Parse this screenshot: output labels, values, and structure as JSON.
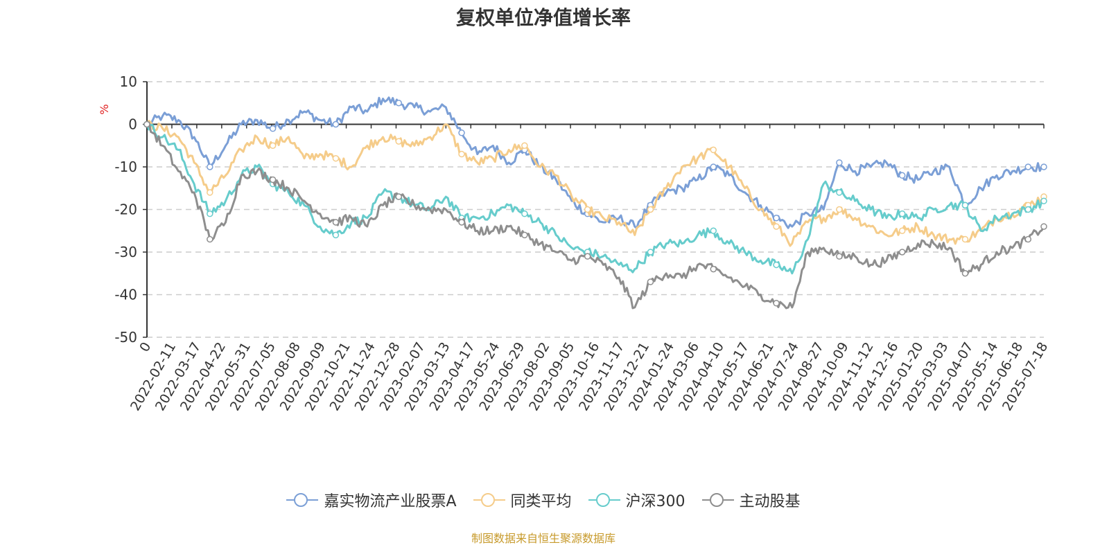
{
  "chart_data": {
    "type": "line",
    "title": "复权单位净值增长率",
    "ylabel": "%",
    "ylim": [
      -50,
      10
    ],
    "yticks": [
      10,
      0,
      -10,
      -20,
      -30,
      -40,
      -50
    ],
    "grid": true,
    "legend_position": "bottom",
    "x_tick_labels": [
      "0",
      "2022-02-11",
      "2022-03-17",
      "2022-04-22",
      "2022-05-31",
      "2022-07-05",
      "2022-08-08",
      "2022-09-09",
      "2022-10-21",
      "2022-11-24",
      "2022-12-28",
      "2023-02-07",
      "2023-03-13",
      "2023-04-17",
      "2023-05-24",
      "2023-06-29",
      "2023-08-02",
      "2023-09-05",
      "2023-10-16",
      "2023-11-17",
      "2023-12-21",
      "2024-01-24",
      "2024-03-06",
      "2024-04-10",
      "2024-05-17",
      "2024-06-21",
      "2024-07-24",
      "2024-08-27",
      "2024-10-09",
      "2024-11-12",
      "2024-12-16",
      "2025-01-20",
      "2025-03-03",
      "2025-04-07",
      "2025-05-14",
      "2025-06-18",
      "2025-07-18"
    ],
    "series": [
      {
        "name": "嘉实物流产业股票A",
        "color": "#7b9fd6",
        "values": [
          0,
          2,
          1,
          -3,
          -10,
          -5,
          0,
          1,
          -1,
          1,
          3,
          1,
          0,
          4,
          3,
          6,
          5,
          4,
          3,
          4,
          -2,
          -7,
          -5,
          -9,
          -6,
          -10,
          -13,
          -18,
          -21,
          -23,
          -22,
          -24,
          -19,
          -16,
          -15,
          -13,
          -10,
          -12,
          -16,
          -19,
          -22,
          -24,
          -21,
          -20,
          -9,
          -11,
          -10,
          -9,
          -12,
          -13,
          -11,
          -10,
          -19,
          -15,
          -12,
          -11,
          -10,
          -10
        ]
      },
      {
        "name": "同类平均",
        "color": "#f5cc8a",
        "values": [
          0,
          -1,
          -3,
          -9,
          -16,
          -12,
          -6,
          -3,
          -5,
          -3,
          -8,
          -7,
          -8,
          -10,
          -5,
          -3,
          -4,
          -5,
          -3,
          0,
          -7,
          -9,
          -8,
          -6,
          -5,
          -10,
          -12,
          -17,
          -20,
          -22,
          -23,
          -26,
          -20,
          -15,
          -10,
          -8,
          -6,
          -10,
          -15,
          -20,
          -24,
          -28,
          -23,
          -22,
          -20,
          -22,
          -24,
          -26,
          -25,
          -24,
          -26,
          -27,
          -27,
          -25,
          -22,
          -21,
          -19,
          -17
        ]
      },
      {
        "name": "沪深300",
        "color": "#66cccc",
        "values": [
          0,
          -3,
          -6,
          -14,
          -21,
          -18,
          -12,
          -10,
          -14,
          -16,
          -19,
          -24,
          -26,
          -23,
          -22,
          -16,
          -17,
          -19,
          -20,
          -17,
          -22,
          -22,
          -21,
          -19,
          -21,
          -23,
          -26,
          -29,
          -30,
          -31,
          -33,
          -34,
          -30,
          -28,
          -28,
          -26,
          -25,
          -28,
          -30,
          -32,
          -33,
          -35,
          -27,
          -14,
          -16,
          -18,
          -20,
          -22,
          -21,
          -22,
          -20,
          -19,
          -19,
          -25,
          -22,
          -21,
          -20,
          -18
        ]
      },
      {
        "name": "主动股基",
        "color": "#8e8e8e",
        "values": [
          0,
          -5,
          -11,
          -16,
          -27,
          -23,
          -12,
          -11,
          -13,
          -15,
          -18,
          -21,
          -23,
          -22,
          -24,
          -19,
          -17,
          -19,
          -20,
          -20,
          -23,
          -25,
          -25,
          -24,
          -26,
          -28,
          -30,
          -32,
          -31,
          -33,
          -36,
          -43,
          -37,
          -35,
          -36,
          -33,
          -34,
          -36,
          -38,
          -40,
          -42,
          -43,
          -30,
          -29,
          -31,
          -31,
          -33,
          -32,
          -30,
          -28,
          -28,
          -29,
          -35,
          -33,
          -30,
          -29,
          -27,
          -24
        ]
      }
    ]
  },
  "source_note": "制图数据来自恒生聚源数据库"
}
